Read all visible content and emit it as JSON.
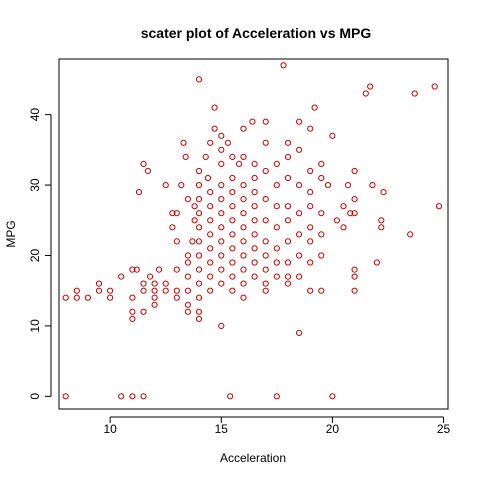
{
  "chart_data": {
    "type": "scatter",
    "title": "scater plot of Acceleration vs MPG",
    "xlabel": "Acceleration",
    "ylabel": "MPG",
    "xlim": [
      7.7,
      25.2
    ],
    "ylim": [
      -1.8,
      47.9
    ],
    "xticks": [
      10,
      15,
      20,
      25
    ],
    "yticks": [
      0,
      10,
      20,
      30,
      40
    ],
    "grid": false,
    "legend": "none",
    "marker": "open-circle",
    "point_color": "#cc0000",
    "points": [
      [
        8.0,
        0
      ],
      [
        8.0,
        14
      ],
      [
        8.5,
        15
      ],
      [
        8.5,
        14
      ],
      [
        9.0,
        14
      ],
      [
        9.5,
        16
      ],
      [
        9.5,
        15
      ],
      [
        10.0,
        15
      ],
      [
        10.0,
        14
      ],
      [
        10.5,
        17
      ],
      [
        10.5,
        0
      ],
      [
        11.0,
        18
      ],
      [
        11.0,
        14
      ],
      [
        11.0,
        12
      ],
      [
        11.0,
        11
      ],
      [
        11.0,
        0
      ],
      [
        11.2,
        18
      ],
      [
        11.3,
        29
      ],
      [
        11.5,
        33
      ],
      [
        11.5,
        16
      ],
      [
        11.5,
        15
      ],
      [
        11.5,
        12
      ],
      [
        11.5,
        0
      ],
      [
        11.7,
        32
      ],
      [
        11.8,
        17
      ],
      [
        12.0,
        16
      ],
      [
        12.0,
        15
      ],
      [
        12.0,
        14
      ],
      [
        12.0,
        13
      ],
      [
        12.2,
        18
      ],
      [
        12.5,
        30
      ],
      [
        12.5,
        16
      ],
      [
        12.5,
        15
      ],
      [
        12.8,
        26
      ],
      [
        12.8,
        24
      ],
      [
        13.0,
        26
      ],
      [
        13.0,
        22
      ],
      [
        13.0,
        18
      ],
      [
        13.0,
        15
      ],
      [
        13.0,
        14
      ],
      [
        13.2,
        30
      ],
      [
        13.3,
        36
      ],
      [
        13.4,
        34
      ],
      [
        13.5,
        28
      ],
      [
        13.5,
        20
      ],
      [
        13.5,
        19
      ],
      [
        13.5,
        17
      ],
      [
        13.5,
        15
      ],
      [
        13.5,
        13
      ],
      [
        13.5,
        12
      ],
      [
        13.7,
        22
      ],
      [
        13.8,
        27
      ],
      [
        13.8,
        25
      ],
      [
        14.0,
        45
      ],
      [
        14.0,
        32
      ],
      [
        14.0,
        30
      ],
      [
        14.0,
        28
      ],
      [
        14.0,
        26
      ],
      [
        14.0,
        24
      ],
      [
        14.0,
        22
      ],
      [
        14.0,
        20
      ],
      [
        14.0,
        18
      ],
      [
        14.0,
        16
      ],
      [
        14.0,
        14
      ],
      [
        14.0,
        12
      ],
      [
        14.0,
        11
      ],
      [
        14.3,
        34
      ],
      [
        14.4,
        31
      ],
      [
        14.5,
        36
      ],
      [
        14.5,
        29
      ],
      [
        14.5,
        27
      ],
      [
        14.5,
        25
      ],
      [
        14.5,
        23
      ],
      [
        14.5,
        21
      ],
      [
        14.5,
        19
      ],
      [
        14.5,
        17
      ],
      [
        14.5,
        15
      ],
      [
        14.7,
        41
      ],
      [
        14.7,
        38
      ],
      [
        15.0,
        37
      ],
      [
        15.0,
        35
      ],
      [
        15.0,
        33
      ],
      [
        15.0,
        30
      ],
      [
        15.0,
        28
      ],
      [
        15.0,
        26
      ],
      [
        15.0,
        24
      ],
      [
        15.0,
        22
      ],
      [
        15.0,
        20
      ],
      [
        15.0,
        18
      ],
      [
        15.0,
        16
      ],
      [
        15.0,
        10
      ],
      [
        15.3,
        36
      ],
      [
        15.5,
        34
      ],
      [
        15.5,
        31
      ],
      [
        15.5,
        29
      ],
      [
        15.5,
        27
      ],
      [
        15.5,
        25
      ],
      [
        15.5,
        23
      ],
      [
        15.5,
        21
      ],
      [
        15.5,
        19
      ],
      [
        15.5,
        17
      ],
      [
        15.5,
        15
      ],
      [
        15.4,
        0
      ],
      [
        15.8,
        33
      ],
      [
        16.0,
        38
      ],
      [
        16.0,
        34
      ],
      [
        16.0,
        30
      ],
      [
        16.0,
        28
      ],
      [
        16.0,
        26
      ],
      [
        16.0,
        24
      ],
      [
        16.0,
        22
      ],
      [
        16.0,
        20
      ],
      [
        16.0,
        18
      ],
      [
        16.0,
        16
      ],
      [
        16.0,
        14
      ],
      [
        16.4,
        39
      ],
      [
        16.5,
        33
      ],
      [
        16.5,
        31
      ],
      [
        16.5,
        29
      ],
      [
        16.5,
        27
      ],
      [
        16.5,
        25
      ],
      [
        16.5,
        23
      ],
      [
        16.5,
        21
      ],
      [
        16.5,
        19
      ],
      [
        16.5,
        17
      ],
      [
        17.0,
        39
      ],
      [
        17.0,
        36
      ],
      [
        17.0,
        32
      ],
      [
        17.0,
        28
      ],
      [
        17.0,
        25
      ],
      [
        17.0,
        22
      ],
      [
        17.0,
        20
      ],
      [
        17.0,
        18
      ],
      [
        17.0,
        16
      ],
      [
        17.0,
        15
      ],
      [
        17.5,
        33
      ],
      [
        17.5,
        30
      ],
      [
        17.5,
        27
      ],
      [
        17.5,
        24
      ],
      [
        17.5,
        21
      ],
      [
        17.5,
        19
      ],
      [
        17.5,
        17
      ],
      [
        17.5,
        0
      ],
      [
        17.8,
        47
      ],
      [
        18.0,
        36
      ],
      [
        18.0,
        34
      ],
      [
        18.0,
        31
      ],
      [
        18.0,
        27
      ],
      [
        18.0,
        25
      ],
      [
        18.0,
        22
      ],
      [
        18.0,
        19
      ],
      [
        18.0,
        17
      ],
      [
        18.0,
        16
      ],
      [
        18.5,
        39
      ],
      [
        18.5,
        35
      ],
      [
        18.5,
        30
      ],
      [
        18.5,
        26
      ],
      [
        18.5,
        23
      ],
      [
        18.5,
        20
      ],
      [
        18.5,
        17
      ],
      [
        18.5,
        9
      ],
      [
        19.0,
        38
      ],
      [
        19.0,
        32
      ],
      [
        19.0,
        29
      ],
      [
        19.0,
        27
      ],
      [
        19.0,
        24
      ],
      [
        19.0,
        22
      ],
      [
        19.0,
        19
      ],
      [
        19.0,
        15
      ],
      [
        19.2,
        41
      ],
      [
        19.5,
        33
      ],
      [
        19.5,
        31
      ],
      [
        19.5,
        26
      ],
      [
        19.5,
        23
      ],
      [
        19.5,
        20
      ],
      [
        19.5,
        15
      ],
      [
        19.8,
        30
      ],
      [
        20.0,
        37
      ],
      [
        20.0,
        0
      ],
      [
        20.2,
        25
      ],
      [
        20.5,
        27
      ],
      [
        20.5,
        24
      ],
      [
        20.7,
        30
      ],
      [
        20.8,
        26
      ],
      [
        21.0,
        32
      ],
      [
        21.0,
        28
      ],
      [
        21.0,
        26
      ],
      [
        21.0,
        18
      ],
      [
        21.0,
        17
      ],
      [
        21.0,
        15
      ],
      [
        21.5,
        43
      ],
      [
        21.7,
        44
      ],
      [
        21.8,
        30
      ],
      [
        22.0,
        19
      ],
      [
        22.2,
        25
      ],
      [
        22.2,
        24
      ],
      [
        22.3,
        29
      ],
      [
        23.5,
        23
      ],
      [
        23.7,
        43
      ],
      [
        24.6,
        44
      ],
      [
        24.8,
        27
      ]
    ]
  }
}
